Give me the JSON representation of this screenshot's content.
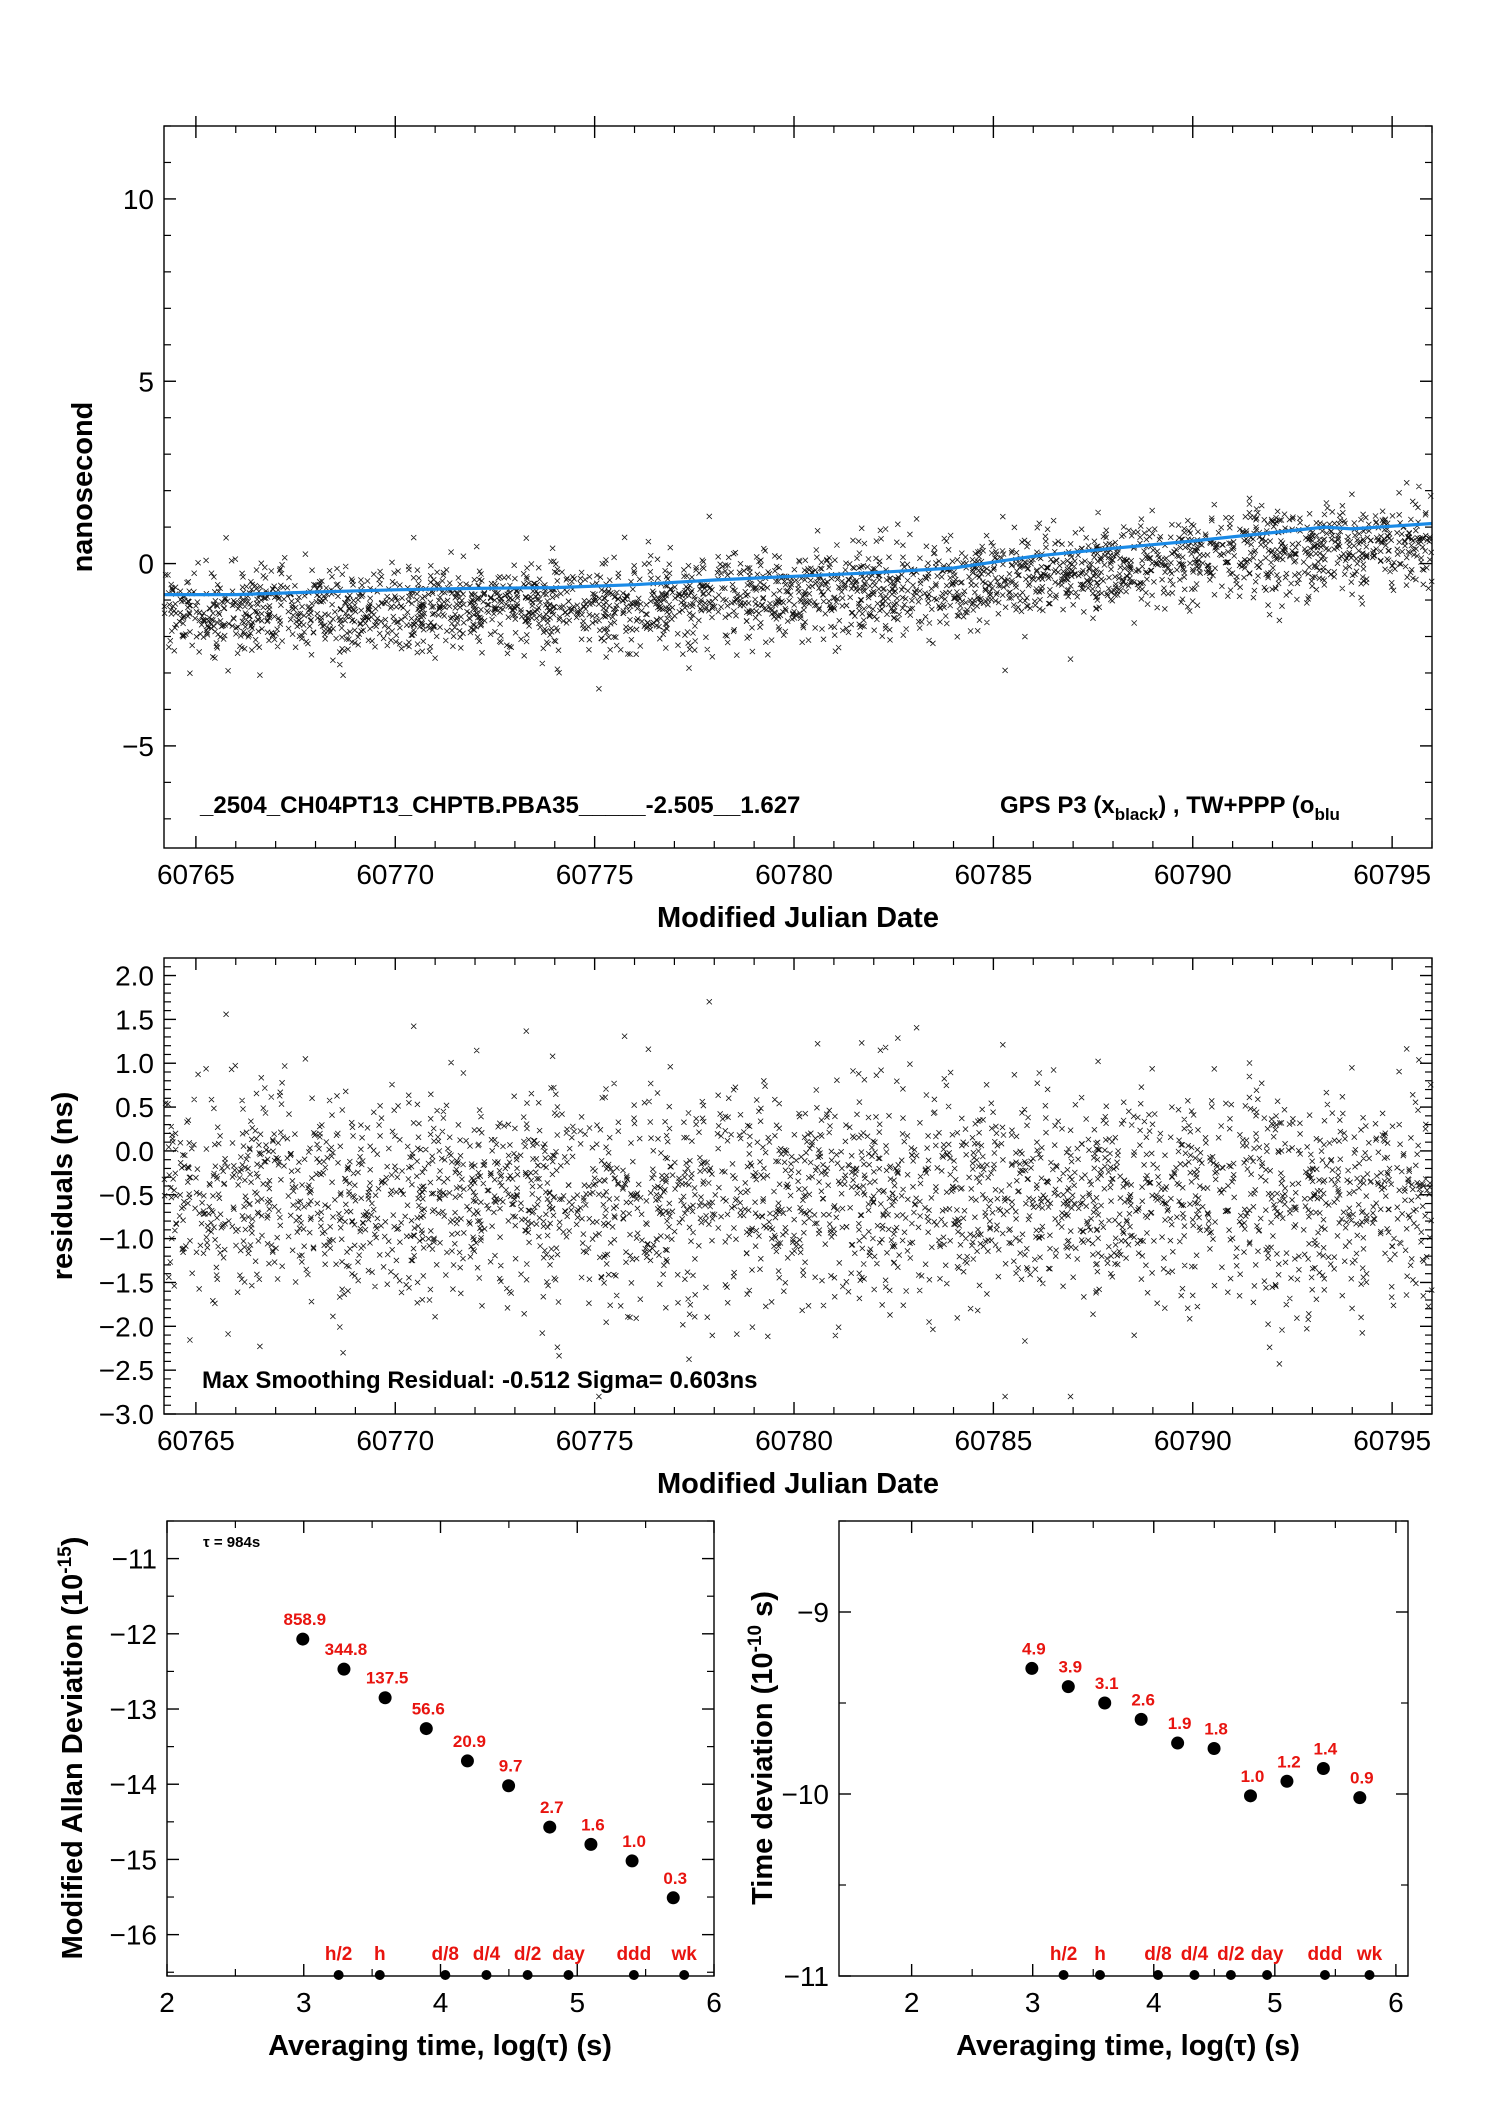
{
  "chart_data": [
    {
      "id": "top",
      "type": "scatter",
      "xlabel": "Modified Julian Date",
      "ylabel": "nanosecond",
      "xlim": [
        60764.2,
        60796.0
      ],
      "ylim": [
        -7.8,
        12.0
      ],
      "xticks": [
        60765,
        60770,
        60775,
        60780,
        60785,
        60790,
        60795
      ],
      "yticks": [
        -5,
        0,
        5,
        10
      ],
      "annotation_main": "_2504_CH04PT13_CHPTB.PBA35_____-2.505__1.627",
      "legend_text": "GPS P3 (x",
      "legend_sub1": "black",
      "legend_mid": ") ,  TW+PPP (o",
      "legend_sub2": "blu",
      "series": [
        {
          "name": "GPS P3",
          "marker": "x",
          "color": "#000000",
          "model": "noisy trend around blue curve, std ~0.6 ns",
          "n_points": 2900
        },
        {
          "name": "TW+PPP",
          "color": "#1a8ae6",
          "x": [
            60764.2,
            60766,
            60768,
            60770,
            60772,
            60774,
            60776,
            60778,
            60780,
            60782,
            60784,
            60786,
            60788,
            60790,
            60792,
            60793.3,
            60794,
            60796.0
          ],
          "y": [
            -0.85,
            -0.85,
            -0.78,
            -0.72,
            -0.68,
            -0.66,
            -0.58,
            -0.45,
            -0.35,
            -0.25,
            -0.12,
            0.2,
            0.42,
            0.62,
            0.85,
            1.0,
            0.95,
            1.1
          ]
        }
      ]
    },
    {
      "id": "mid",
      "type": "scatter",
      "xlabel": "Modified Julian Date",
      "ylabel": "residuals (ns)",
      "xlim": [
        60764.2,
        60796.0
      ],
      "ylim": [
        -3.0,
        2.2
      ],
      "xticks": [
        60765,
        60770,
        60775,
        60780,
        60785,
        60790,
        60795
      ],
      "yticks": [
        2.0,
        1.5,
        1.0,
        0.5,
        0.0,
        -0.5,
        -1.0,
        -1.5,
        -2.0,
        -2.5,
        -3.0
      ],
      "ytick_labels": [
        "2.0",
        "1.5",
        "1.0",
        "0.5",
        "0.0",
        "−0.5",
        "−1.0",
        "−1.5",
        "−2.0",
        "−2.5",
        "−3.0"
      ],
      "annotation": "Max Smoothing Residual: -0.512  Sigma= 0.603ns",
      "series": [
        {
          "name": "residuals",
          "marker": "x",
          "color": "#000000",
          "model": "mean -0.5 ns, sigma 0.603 ns",
          "n_points": 2900
        }
      ]
    },
    {
      "id": "mdev",
      "type": "scatter",
      "xlabel": "Averaging time, log(τ) (s)",
      "ylabel": "Modified Allan Deviation (10",
      "ylabel_sup": "-15",
      "ylabel_tail": ")",
      "xlim": [
        2,
        6
      ],
      "ylim": [
        -16.55,
        -10.5
      ],
      "xticks": [
        2,
        3,
        4,
        5,
        6
      ],
      "yticks": [
        -11,
        -12,
        -13,
        -14,
        -15,
        -16
      ],
      "ytick_labels": [
        "−11",
        "−12",
        "−13",
        "−14",
        "−15",
        "−16"
      ],
      "annotation": "τ = 984s",
      "x": [
        2.993,
        3.294,
        3.595,
        3.896,
        4.197,
        4.498,
        4.799,
        5.1,
        5.401,
        5.702
      ],
      "y": [
        -12.07,
        -12.47,
        -12.85,
        -13.26,
        -13.69,
        -14.02,
        -14.57,
        -14.8,
        -15.02,
        -15.51
      ],
      "labels": [
        "858.9",
        "344.8",
        "137.5",
        "56.6",
        "20.9",
        "9.7",
        "2.7",
        "1.6",
        "1.0",
        "0.3"
      ],
      "bottom_marks": [
        {
          "label": "h/2",
          "x": 3.255
        },
        {
          "label": "h",
          "x": 3.556
        },
        {
          "label": "d/8",
          "x": 4.035
        },
        {
          "label": "d/4",
          "x": 4.336
        },
        {
          "label": "d/2",
          "x": 4.637
        },
        {
          "label": "day",
          "x": 4.936
        },
        {
          "label": "ddd",
          "x": 5.414
        },
        {
          "label": "wk",
          "x": 5.782
        }
      ]
    },
    {
      "id": "tdev",
      "type": "scatter",
      "xlabel": "Averaging time, log(τ) (s)",
      "ylabel": "Time deviation (10",
      "ylabel_sup": "-10",
      "ylabel_tail": " s)",
      "xlim": [
        1.4,
        6.1
      ],
      "ylim": [
        -11.0,
        -8.5
      ],
      "xticks": [
        2,
        3,
        4,
        5,
        6
      ],
      "yticks": [
        -9,
        -10,
        -11
      ],
      "ytick_labels": [
        "−9",
        "−10",
        "−11"
      ],
      "x": [
        2.993,
        3.294,
        3.595,
        3.896,
        4.197,
        4.498,
        4.799,
        5.1,
        5.401,
        5.702
      ],
      "y": [
        -9.31,
        -9.41,
        -9.5,
        -9.59,
        -9.72,
        -9.75,
        -10.01,
        -9.93,
        -9.86,
        -10.02
      ],
      "labels": [
        "4.9",
        "3.9",
        "3.1",
        "2.6",
        "1.9",
        "1.8",
        "1.0",
        "1.2",
        "1.4",
        "0.9"
      ],
      "bottom_marks": [
        {
          "label": "h/2",
          "x": 3.255
        },
        {
          "label": "h",
          "x": 3.556
        },
        {
          "label": "d/8",
          "x": 4.035
        },
        {
          "label": "d/4",
          "x": 4.336
        },
        {
          "label": "d/2",
          "x": 4.637
        },
        {
          "label": "day",
          "x": 4.936
        },
        {
          "label": "ddd",
          "x": 5.414
        },
        {
          "label": "wk",
          "x": 5.782
        }
      ]
    }
  ]
}
